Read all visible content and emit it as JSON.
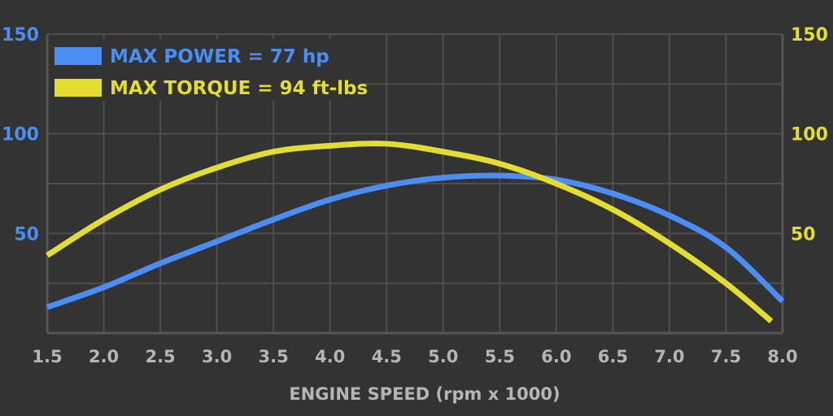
{
  "colors": {
    "background": "#333333",
    "grid": "#4e4e4e",
    "axis": "#555555",
    "power": "#4a8ef5",
    "torque": "#e3dd33",
    "tick_text": "#b5b5b5"
  },
  "chart_data": {
    "type": "line",
    "title": "",
    "xlabel": "ENGINE SPEED (rpm x 1000)",
    "x_ticks": [
      "1.5",
      "2.0",
      "2.5",
      "3.0",
      "3.5",
      "4.0",
      "4.5",
      "5.0",
      "5.5",
      "6.0",
      "6.5",
      "7.0",
      "7.5",
      "8.0"
    ],
    "xlim": [
      1.5,
      8.0
    ],
    "ylim": [
      0,
      150
    ],
    "y_ticks_left": [
      "150",
      "100",
      "50"
    ],
    "y_ticks_right": [
      "150",
      "100",
      "50"
    ],
    "y_tick_values": [
      150,
      100,
      50
    ],
    "grid": true,
    "legend_position": "top-left",
    "series": [
      {
        "name": "MAX POWER = 77 hp",
        "color": "#4a8ef5",
        "x": [
          1.5,
          2.0,
          2.5,
          3.0,
          3.5,
          4.0,
          4.5,
          5.0,
          5.5,
          6.0,
          6.5,
          7.0,
          7.5,
          8.0
        ],
        "y": [
          13,
          23,
          35,
          46,
          57,
          67,
          74,
          78,
          79,
          77,
          70,
          59,
          43,
          16
        ]
      },
      {
        "name": "MAX TORQUE = 94 ft-lbs",
        "color": "#e3dd33",
        "x": [
          1.5,
          2.0,
          2.5,
          3.0,
          3.5,
          4.0,
          4.5,
          5.0,
          5.5,
          6.0,
          6.5,
          7.0,
          7.5,
          7.9
        ],
        "y": [
          39,
          57,
          72,
          83,
          91,
          94,
          95,
          91,
          85,
          75,
          62,
          45,
          25,
          6
        ]
      }
    ]
  }
}
